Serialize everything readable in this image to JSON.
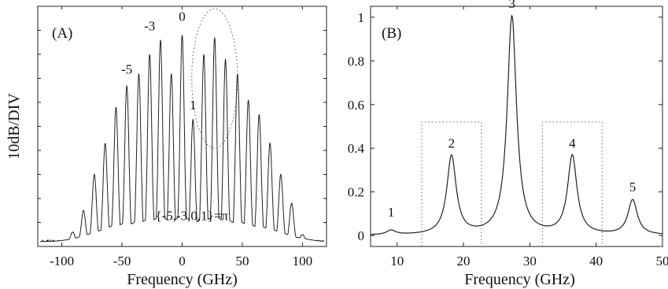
{
  "chart_data": [
    {
      "panel_label": "(A)",
      "type": "line",
      "xlabel": "Frequency (GHz)",
      "ylabel": "10dB/DIV",
      "xlim": [
        -120,
        120
      ],
      "xticks": [
        -100,
        -50,
        0,
        50,
        100
      ],
      "ylim": [
        0,
        1
      ],
      "yticks_labeled": false,
      "grid": false,
      "comb": {
        "spacing_ghz": 9.1,
        "peaks": [
          {
            "x": -91,
            "y": 0.06
          },
          {
            "x": -82,
            "y": 0.15
          },
          {
            "x": -73,
            "y": 0.3
          },
          {
            "x": -64,
            "y": 0.43
          },
          {
            "x": -55,
            "y": 0.58
          },
          {
            "x": -46,
            "y": 0.67
          },
          {
            "x": -36,
            "y": 0.72
          },
          {
            "x": -27,
            "y": 0.8
          },
          {
            "x": -18,
            "y": 0.86
          },
          {
            "x": -9,
            "y": 0.72
          },
          {
            "x": 0,
            "y": 0.88
          },
          {
            "x": 9,
            "y": 0.53
          },
          {
            "x": 18,
            "y": 0.8
          },
          {
            "x": 27,
            "y": 0.87
          },
          {
            "x": 36,
            "y": 0.78
          },
          {
            "x": 46,
            "y": 0.72
          },
          {
            "x": 55,
            "y": 0.61
          },
          {
            "x": 64,
            "y": 0.55
          },
          {
            "x": 73,
            "y": 0.43
          },
          {
            "x": 82,
            "y": 0.3
          },
          {
            "x": 91,
            "y": 0.18
          },
          {
            "x": 100,
            "y": 0.05
          }
        ]
      },
      "annotations": [
        {
          "text": "-5",
          "x": -46,
          "y": 0.72
        },
        {
          "text": "-3",
          "x": -27,
          "y": 0.9
        },
        {
          "text": "0",
          "x": 0,
          "y": 0.94
        },
        {
          "text": "1",
          "x": 9,
          "y": 0.57
        }
      ],
      "phase_label": "{-5,-3,0,1}=π",
      "highlight_ellipse": {
        "x_center": 27,
        "y_center": 0.7,
        "x_halfwidth": 19,
        "y_halfwidth": 0.29
      }
    },
    {
      "panel_label": "(B)",
      "type": "line",
      "xlabel": "Frequency (GHz)",
      "ylabel": "",
      "xlim": [
        6,
        50
      ],
      "xticks": [
        10,
        20,
        30,
        40,
        50
      ],
      "ylim": [
        -0.05,
        1.05
      ],
      "yticks": [
        0,
        0.2,
        0.4,
        0.6,
        0.8,
        1
      ],
      "grid": false,
      "peaks": [
        {
          "label": "1",
          "x": 9.1,
          "y": 0.02
        },
        {
          "label": "2",
          "x": 18.2,
          "y": 0.36
        },
        {
          "label": "3",
          "x": 27.3,
          "y": 1.0
        },
        {
          "label": "4",
          "x": 36.4,
          "y": 0.36
        },
        {
          "label": "5",
          "x": 45.5,
          "y": 0.16
        }
      ],
      "dotted_boxes": [
        {
          "x_range": [
            13.7,
            22.7
          ],
          "y_top": 0.52
        },
        {
          "x_range": [
            31.9,
            40.9
          ],
          "y_top": 0.52
        }
      ]
    }
  ]
}
